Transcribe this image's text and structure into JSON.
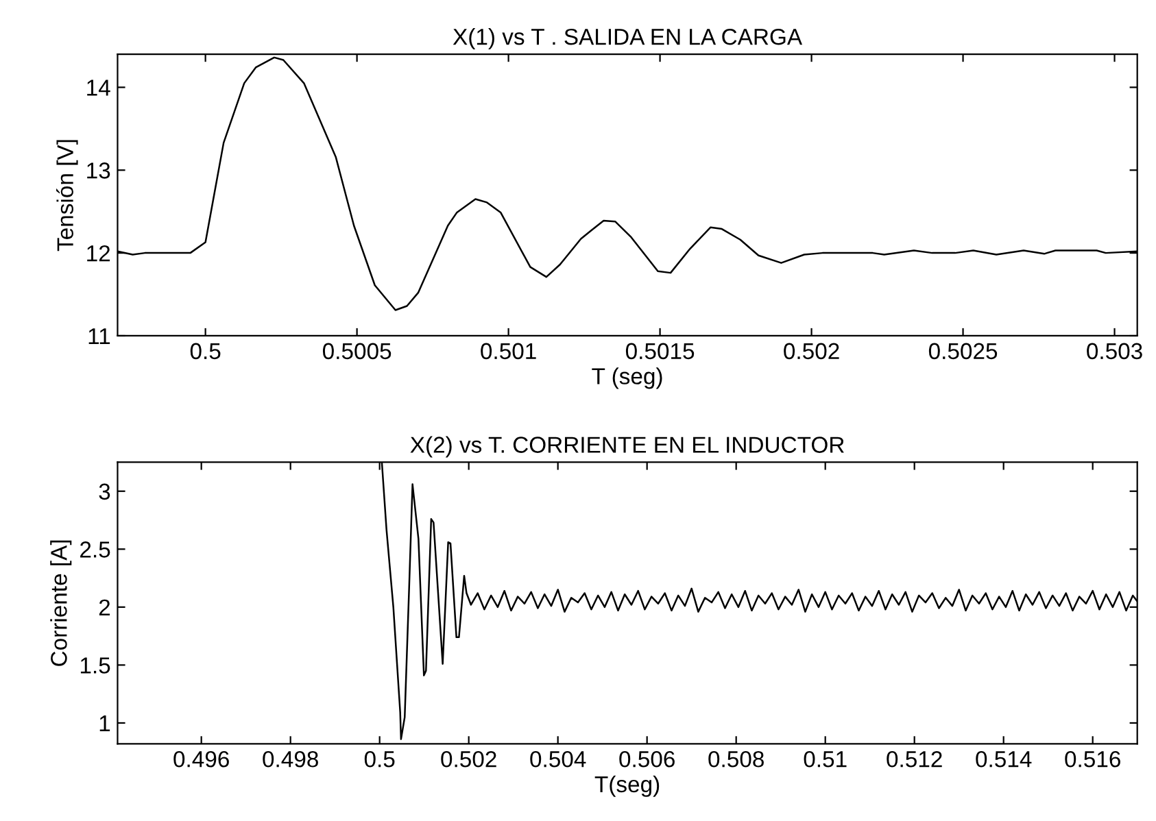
{
  "chart_data": [
    {
      "type": "line",
      "title": "X(1) vs T . SALIDA EN LA CARGA",
      "xlabel": "T (seg)",
      "ylabel": "Tensión [V]",
      "xlim": [
        0.49971,
        0.503075
      ],
      "ylim": [
        11,
        14.4
      ],
      "xticks": [
        0.5,
        0.5005,
        0.501,
        0.5015,
        0.502,
        0.5025,
        0.503
      ],
      "yticks": [
        11,
        12,
        13,
        14
      ],
      "grid": false,
      "legend": false,
      "marker": "none",
      "line_style": "solid",
      "series": [
        {
          "color": "#000000",
          "x": [
            0.49971,
            0.49976,
            0.4998,
            0.49995,
            0.5,
            0.50006,
            0.500128,
            0.500166,
            0.500227,
            0.500257,
            0.500325,
            0.50043,
            0.50049,
            0.500559,
            0.500627,
            0.500665,
            0.500702,
            0.5008,
            0.50083,
            0.500891,
            0.500929,
            0.500974,
            0.501072,
            0.501125,
            0.50117,
            0.501239,
            0.501276,
            0.501314,
            0.501352,
            0.501405,
            0.501493,
            0.501535,
            0.501599,
            0.501667,
            0.501704,
            0.501765,
            0.501825,
            0.5019,
            0.501976,
            0.502036,
            0.502202,
            0.50224,
            0.502338,
            0.502398,
            0.502474,
            0.502534,
            0.50261,
            0.5027,
            0.502768,
            0.502805,
            0.502941,
            0.502971,
            0.503074
          ],
          "values": [
            12.02,
            11.98,
            12.0,
            12.0,
            12.13,
            13.33,
            14.05,
            14.24,
            14.36,
            14.33,
            14.05,
            13.16,
            12.33,
            11.61,
            11.31,
            11.36,
            11.52,
            12.33,
            12.49,
            12.65,
            12.61,
            12.49,
            11.83,
            11.71,
            11.86,
            12.17,
            12.28,
            12.39,
            12.38,
            12.19,
            11.78,
            11.76,
            12.05,
            12.31,
            12.29,
            12.16,
            11.97,
            11.88,
            11.98,
            12.0,
            12.0,
            11.98,
            12.03,
            12.0,
            12.0,
            12.03,
            11.98,
            12.03,
            11.99,
            12.03,
            12.03,
            12.0,
            12.02
          ]
        }
      ]
    },
    {
      "type": "line",
      "title": "X(2) vs T. CORRIENTE EN EL INDUCTOR",
      "xlabel": "T(seg)",
      "ylabel": "Corriente [A]",
      "xlim": [
        0.49412,
        0.517
      ],
      "ylim": [
        0.82,
        3.25
      ],
      "xticks": [
        0.496,
        0.498,
        0.5,
        0.502,
        0.504,
        0.506,
        0.508,
        0.51,
        0.512,
        0.514,
        0.516
      ],
      "yticks": [
        1,
        1.5,
        2,
        2.5,
        3
      ],
      "grid": false,
      "legend": false,
      "marker": "none",
      "line_style": "solid",
      "series": [
        {
          "color": "#000000",
          "x": [
            0.50005,
            0.500154,
            0.500308,
            0.500462,
            0.50048,
            0.500563,
            0.500665,
            0.500738,
            0.500871,
            0.500994,
            0.50104,
            0.501157,
            0.50121,
            0.501415,
            0.501538,
            0.50159,
            0.501723,
            0.50178,
            0.501897,
            0.50195,
            0.50205,
            0.5022,
            0.50235,
            0.5025,
            0.50265,
            0.5028,
            0.50295,
            0.5031,
            0.50325,
            0.5034,
            0.50355,
            0.5037,
            0.50385,
            0.504,
            0.50415,
            0.5043,
            0.50445,
            0.5046,
            0.50475,
            0.5049,
            0.50505,
            0.5052,
            0.50535,
            0.5055,
            0.50565,
            0.5058,
            0.50595,
            0.5061,
            0.50625,
            0.5064,
            0.50655,
            0.5067,
            0.50685,
            0.507,
            0.50715,
            0.5073,
            0.50745,
            0.5076,
            0.50775,
            0.5079,
            0.50805,
            0.5082,
            0.50835,
            0.5085,
            0.50865,
            0.5088,
            0.50895,
            0.5091,
            0.50925,
            0.5094,
            0.50955,
            0.5097,
            0.50985,
            0.51,
            0.51015,
            0.5103,
            0.51045,
            0.5106,
            0.51075,
            0.5109,
            0.51105,
            0.5112,
            0.51135,
            0.5115,
            0.51165,
            0.5118,
            0.51195,
            0.5121,
            0.51225,
            0.5124,
            0.51255,
            0.5127,
            0.51285,
            0.513,
            0.51315,
            0.5133,
            0.51345,
            0.5136,
            0.51375,
            0.5139,
            0.51405,
            0.5142,
            0.51435,
            0.5145,
            0.51465,
            0.5148,
            0.51495,
            0.5151,
            0.51525,
            0.5154,
            0.51555,
            0.5157,
            0.51585,
            0.516,
            0.51615,
            0.5163,
            0.51645,
            0.5166,
            0.51675,
            0.5169,
            0.517
          ],
          "values": [
            3.25,
            2.67,
            2.0,
            1.09,
            0.86,
            1.05,
            2.2,
            3.06,
            2.59,
            1.41,
            1.45,
            2.76,
            2.73,
            1.51,
            2.56,
            2.55,
            1.74,
            1.74,
            2.27,
            2.12,
            2.02,
            2.12,
            1.98,
            2.1,
            2.0,
            2.14,
            1.97,
            2.09,
            2.03,
            2.13,
            1.99,
            2.11,
            2.01,
            2.15,
            1.96,
            2.08,
            2.04,
            2.12,
            1.98,
            2.1,
            2.0,
            2.13,
            1.97,
            2.11,
            2.02,
            2.14,
            1.98,
            2.09,
            2.03,
            2.12,
            1.97,
            2.1,
            2.01,
            2.16,
            1.96,
            2.08,
            2.04,
            2.13,
            1.99,
            2.11,
            2.0,
            2.14,
            1.97,
            2.1,
            2.03,
            2.12,
            1.98,
            2.09,
            2.02,
            2.15,
            1.96,
            2.11,
            2.0,
            2.13,
            1.98,
            2.1,
            2.03,
            2.12,
            1.97,
            2.09,
            2.01,
            2.14,
            1.98,
            2.11,
            2.02,
            2.13,
            1.96,
            2.1,
            2.04,
            2.12,
            1.99,
            2.08,
            2.01,
            2.15,
            1.97,
            2.1,
            2.03,
            2.12,
            1.98,
            2.09,
            2.0,
            2.14,
            1.97,
            2.11,
            2.02,
            2.13,
            1.99,
            2.1,
            2.01,
            2.12,
            1.97,
            2.09,
            2.03,
            2.14,
            1.98,
            2.11,
            2.0,
            2.13,
            1.97,
            2.1,
            2.05
          ]
        }
      ]
    }
  ]
}
